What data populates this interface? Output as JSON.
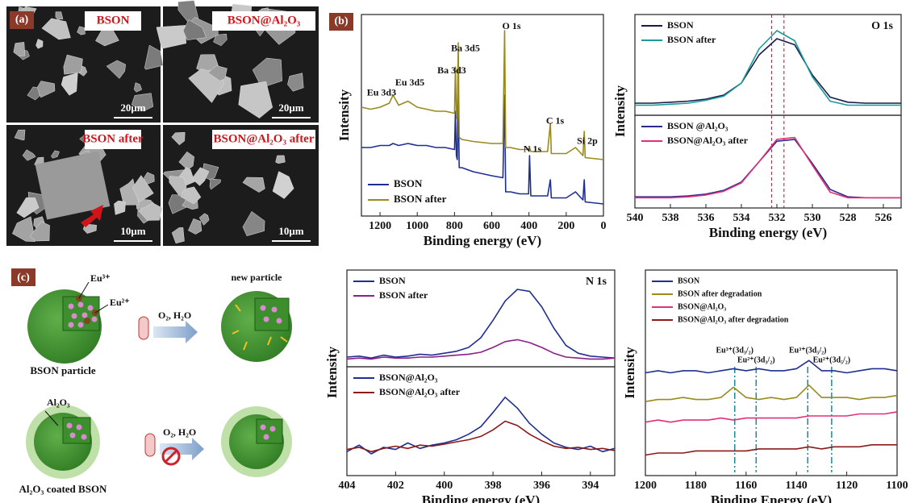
{
  "sem": {
    "panel_label": "(a)",
    "images": [
      {
        "label": "BSON",
        "scale": "20μm"
      },
      {
        "label": "BSON@Al₂O₃",
        "scale": "20μm"
      },
      {
        "label": "BSON after",
        "scale": "10μm"
      },
      {
        "label": "BSON@Al₂O₃ after",
        "scale": "10μm"
      }
    ]
  },
  "schematic": {
    "panel_label": "(c)",
    "eu3": "Eu³⁺",
    "eu2": "Eu²⁺",
    "particle": "BSON particle",
    "condition_top": "O₂, H₂O",
    "new_particle": "new particle",
    "coating": "Al₂O₃",
    "condition_bottom": "O₂, H₂O",
    "coated": "Al₂O₃ coated BSON"
  },
  "chart_data": [
    {
      "type": "line",
      "panel_label": "(b)",
      "xlabel": "Binding energy (eV)",
      "ylabel": "Intensity",
      "legend": "lower left",
      "xlim": [
        1300,
        0
      ],
      "ylim": [
        0,
        100
      ],
      "xticks": [
        1200,
        1000,
        800,
        600,
        400,
        200,
        0
      ],
      "x": [
        1300,
        1250,
        1200,
        1150,
        1130,
        1100,
        1050,
        1000,
        950,
        900,
        850,
        800,
        795,
        790,
        785,
        780,
        775,
        760,
        700,
        600,
        540,
        531,
        525,
        500,
        450,
        402,
        397,
        390,
        300,
        285,
        280,
        200,
        150,
        110,
        103,
        98,
        0
      ],
      "series": [
        {
          "name": "BSON",
          "color": "#1f2f8f",
          "values": [
            34,
            34,
            35,
            35,
            36,
            35,
            36,
            35,
            35,
            34,
            34,
            33,
            52,
            30,
            28,
            64,
            24,
            24,
            22,
            20,
            19,
            60,
            12,
            12,
            11,
            11,
            30,
            10,
            10,
            18,
            9,
            9,
            12,
            8,
            18,
            7,
            6
          ]
        },
        {
          "name": "BSON after",
          "color": "#9a8a1c",
          "values": [
            54,
            53,
            54,
            56,
            60,
            55,
            57,
            54,
            53,
            52,
            52,
            51,
            74,
            50,
            48,
            86,
            39,
            38,
            37,
            36,
            36,
            92,
            34,
            34,
            33,
            33,
            34,
            32,
            32,
            46,
            31,
            31,
            34,
            30,
            42,
            29,
            28
          ]
        }
      ],
      "annotations": [
        {
          "text": "Eu 3d3",
          "x": 1192,
          "y": 61
        },
        {
          "text": "Eu 3d5",
          "x": 1040,
          "y": 66
        },
        {
          "text": "Ba 3d3",
          "x": 815,
          "y": 72
        },
        {
          "text": "Ba 3d5",
          "x": 741,
          "y": 83
        },
        {
          "text": "O 1s",
          "x": 494,
          "y": 94
        },
        {
          "text": "C 1s",
          "x": 260,
          "y": 47
        },
        {
          "text": "N 1s",
          "x": 381,
          "y": 33
        },
        {
          "text": "Si 2p",
          "x": 87,
          "y": 37
        }
      ]
    },
    {
      "type": "line",
      "title": "O 1s",
      "legend": "upper left",
      "xlim": [
        540,
        525
      ],
      "ylim": [
        0,
        100
      ],
      "x": [
        540,
        539,
        538,
        537,
        536,
        535,
        534,
        533,
        532,
        531,
        530,
        529,
        528,
        527,
        526,
        525
      ],
      "ref_lines": [
        532.3,
        531.6
      ],
      "series": [
        {
          "name": "BSON",
          "color": "#1a1a4a",
          "values": [
            12,
            12,
            13,
            14,
            16,
            20,
            32,
            60,
            76,
            70,
            40,
            18,
            13,
            12,
            12,
            12
          ]
        },
        {
          "name": "BSON after",
          "color": "#1b9a9a",
          "values": [
            10,
            10,
            11,
            12,
            15,
            19,
            32,
            66,
            84,
            74,
            38,
            14,
            10,
            10,
            10,
            10
          ]
        }
      ]
    },
    {
      "type": "line",
      "xlabel": "Binding energy (eV)",
      "ylabel": "Intensity",
      "legend": "upper left",
      "xlim": [
        540,
        525
      ],
      "ylim": [
        0,
        100
      ],
      "xticks": [
        540,
        538,
        536,
        534,
        532,
        530,
        528,
        526
      ],
      "x": [
        540,
        539,
        538,
        537,
        536,
        535,
        534,
        533,
        532,
        531,
        530,
        529,
        528,
        527,
        526,
        525
      ],
      "ref_lines": [
        532.3,
        531.6
      ],
      "series": [
        {
          "name": "BSON @Al₂O₃",
          "color": "#2a2a8a",
          "values": [
            12,
            12,
            12,
            13,
            15,
            19,
            28,
            50,
            72,
            74,
            48,
            20,
            12,
            11,
            11,
            11
          ]
        },
        {
          "name": "BSON@Al₂O₃ after",
          "color": "#e0307a",
          "values": [
            11,
            11,
            11,
            12,
            14,
            18,
            27,
            50,
            74,
            76,
            46,
            17,
            11,
            11,
            11,
            11
          ]
        }
      ]
    },
    {
      "type": "line",
      "title": "N 1s",
      "legend": "upper left",
      "xlim": [
        404,
        393
      ],
      "ylim": [
        0,
        100
      ],
      "x": [
        404,
        403.5,
        403,
        402.5,
        402,
        401.5,
        401,
        400.5,
        400,
        399.5,
        399,
        398.5,
        398,
        397.5,
        397,
        396.5,
        396,
        395.5,
        395,
        394.5,
        394,
        393.5,
        393
      ],
      "series": [
        {
          "name": "BSON",
          "color": "#1f2f8f",
          "values": [
            10,
            11,
            9,
            12,
            10,
            11,
            13,
            12,
            14,
            16,
            20,
            30,
            48,
            68,
            80,
            78,
            62,
            40,
            22,
            14,
            11,
            10,
            9
          ]
        },
        {
          "name": "BSON after",
          "color": "#8a1f8a",
          "values": [
            8,
            9,
            8,
            10,
            9,
            9,
            10,
            10,
            11,
            12,
            13,
            15,
            20,
            26,
            28,
            25,
            20,
            14,
            10,
            9,
            8,
            8,
            9
          ]
        }
      ]
    },
    {
      "type": "line",
      "xlabel": "Binding energy (eV)",
      "ylabel": "Intensity",
      "legend": "upper left",
      "xlim": [
        404,
        393
      ],
      "ylim": [
        0,
        100
      ],
      "xticks": [
        404,
        402,
        400,
        398,
        396,
        394
      ],
      "x": [
        404,
        403.5,
        403,
        402.5,
        402,
        401.5,
        401,
        400.5,
        400,
        399.5,
        399,
        398.5,
        398,
        397.5,
        397,
        396.5,
        396,
        395.5,
        395,
        394.5,
        394,
        393.5,
        393
      ],
      "series": [
        {
          "name": "BSON@Al₂O₃",
          "color": "#1f2f8f",
          "values": [
            22,
            28,
            20,
            26,
            24,
            30,
            25,
            28,
            30,
            33,
            38,
            45,
            58,
            72,
            62,
            48,
            38,
            30,
            26,
            24,
            27,
            22,
            25
          ]
        },
        {
          "name": "BSON@Al₂O₃ after",
          "color": "#8b1a1a",
          "values": [
            24,
            26,
            22,
            25,
            27,
            25,
            28,
            27,
            29,
            31,
            33,
            36,
            42,
            50,
            46,
            38,
            32,
            27,
            25,
            26,
            24,
            25,
            23
          ]
        }
      ]
    },
    {
      "type": "line",
      "xlabel": "Binding Energy (eV)",
      "ylabel": "Intensity",
      "legend": "upper left",
      "xlim": [
        1200,
        1100
      ],
      "ylim": [
        0,
        100
      ],
      "xticks": [
        1200,
        1180,
        1160,
        1140,
        1120,
        1100
      ],
      "x": [
        1200,
        1195,
        1190,
        1185,
        1180,
        1175,
        1170,
        1165,
        1160,
        1155,
        1150,
        1145,
        1140,
        1135,
        1130,
        1125,
        1120,
        1115,
        1110,
        1105,
        1100
      ],
      "ref_lines": [
        {
          "value": 1164.5,
          "label": "Eu³⁺(3d₃/₂)"
        },
        {
          "value": 1156,
          "label": "Eu²⁺(3d₃/₂)"
        },
        {
          "value": 1135.5,
          "label": "Eu³⁺(3d₅/₂)"
        },
        {
          "value": 1126,
          "label": "Eu²⁺(3d₅/₂)"
        }
      ],
      "series": [
        {
          "name": "BSON",
          "color": "#1f2f8f",
          "values": [
            50,
            51,
            50,
            51,
            51,
            50,
            51,
            52,
            51,
            52,
            51,
            51,
            52,
            56,
            51,
            51,
            50,
            51,
            52,
            52,
            51
          ]
        },
        {
          "name": "BSON after degradation",
          "color": "#9a8a1c",
          "values": [
            36,
            37,
            37,
            38,
            37,
            37,
            38,
            43,
            38,
            37,
            38,
            37,
            38,
            44,
            38,
            38,
            38,
            37,
            38,
            38,
            39
          ]
        },
        {
          "name": "BSON@Al₂O₃",
          "color": "#e0307a",
          "values": [
            26,
            27,
            26,
            27,
            27,
            27,
            28,
            27,
            28,
            28,
            28,
            28,
            28,
            29,
            29,
            29,
            29,
            30,
            30,
            30,
            31
          ]
        },
        {
          "name": "BSON@Al₂O₃ after degradation",
          "color": "#8b1a1a",
          "values": [
            10,
            11,
            11,
            11,
            12,
            12,
            12,
            12,
            12,
            13,
            13,
            13,
            13,
            14,
            13,
            14,
            14,
            14,
            15,
            15,
            15
          ]
        }
      ]
    }
  ]
}
